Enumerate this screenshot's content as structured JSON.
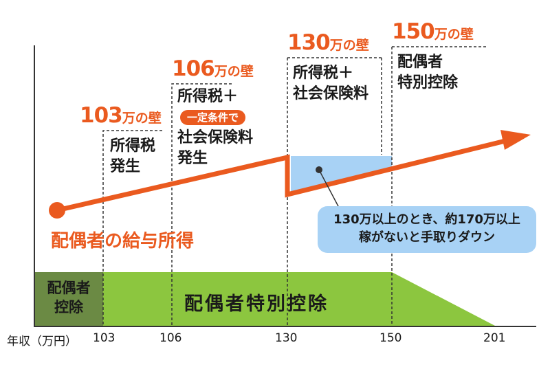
{
  "walls": [
    {
      "number": "103",
      "suffix": "万の壁",
      "lines": [
        "所得税",
        "発生"
      ]
    },
    {
      "number": "106",
      "suffix": "万の壁",
      "pill": "一定条件で",
      "lines": [
        "所得税＋",
        "社会保険料",
        "発生"
      ]
    },
    {
      "number": "130",
      "suffix": "万の壁",
      "lines": [
        "所得税＋",
        "社会保険料"
      ]
    },
    {
      "number": "150",
      "suffix": "万の壁",
      "lines": [
        "配偶者",
        "特別控除"
      ]
    }
  ],
  "income_label": "配偶者の給与所得",
  "note": [
    "130万以上のとき、約170万以上",
    "稼がないと手取りダウン"
  ],
  "deduction": {
    "small_lines": [
      "配偶者",
      "控除"
    ],
    "special": "配偶者特別控除"
  },
  "axis": {
    "label": "年収（万円）",
    "ticks": [
      "103",
      "106",
      "130",
      "150",
      "201"
    ]
  },
  "colors": {
    "orange": "#ea5a1f",
    "green": "#8cc63f",
    "dark_green": "#6b8a44",
    "light_blue": "#a8d2f5"
  }
}
